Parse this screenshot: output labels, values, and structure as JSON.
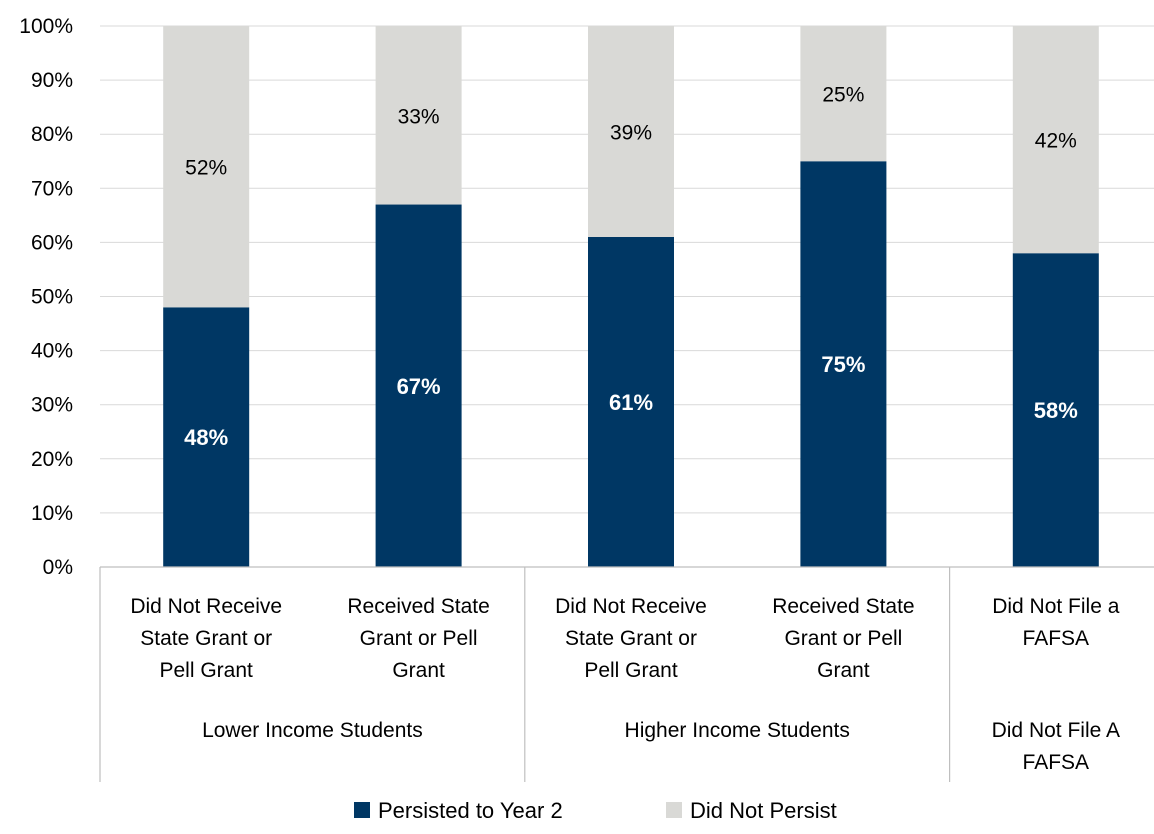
{
  "chart_data": {
    "type": "bar",
    "stacked": true,
    "ylim": [
      0,
      100
    ],
    "y_ticks": [
      "0%",
      "10%",
      "20%",
      "30%",
      "40%",
      "50%",
      "60%",
      "70%",
      "80%",
      "90%",
      "100%"
    ],
    "grid": true,
    "legend_position": "bottom",
    "categories": [
      [
        "Did Not Receive",
        "State Grant or",
        "Pell Grant"
      ],
      [
        "Received State",
        "Grant or Pell",
        "Grant"
      ],
      [
        "Did Not Receive",
        "State Grant or",
        "Pell Grant"
      ],
      [
        "Received State",
        "Grant or Pell",
        "Grant"
      ],
      [
        "Did Not File a",
        "FAFSA"
      ]
    ],
    "groups": [
      {
        "label": [
          "Lower Income Students"
        ],
        "category_count": 2
      },
      {
        "label": [
          "Higher Income Students"
        ],
        "category_count": 2
      },
      {
        "label": [
          "Did Not File A",
          "FAFSA"
        ],
        "category_count": 1
      }
    ],
    "series": [
      {
        "name": "Persisted to Year 2",
        "color": "#003764",
        "values": [
          48,
          67,
          61,
          75,
          58
        ],
        "labels": [
          "48%",
          "67%",
          "61%",
          "75%",
          "58%"
        ]
      },
      {
        "name": "Did Not Persist",
        "color": "#d9d9d6",
        "values": [
          52,
          33,
          39,
          25,
          42
        ],
        "labels": [
          "52%",
          "33%",
          "39%",
          "25%",
          "42%"
        ]
      }
    ]
  }
}
